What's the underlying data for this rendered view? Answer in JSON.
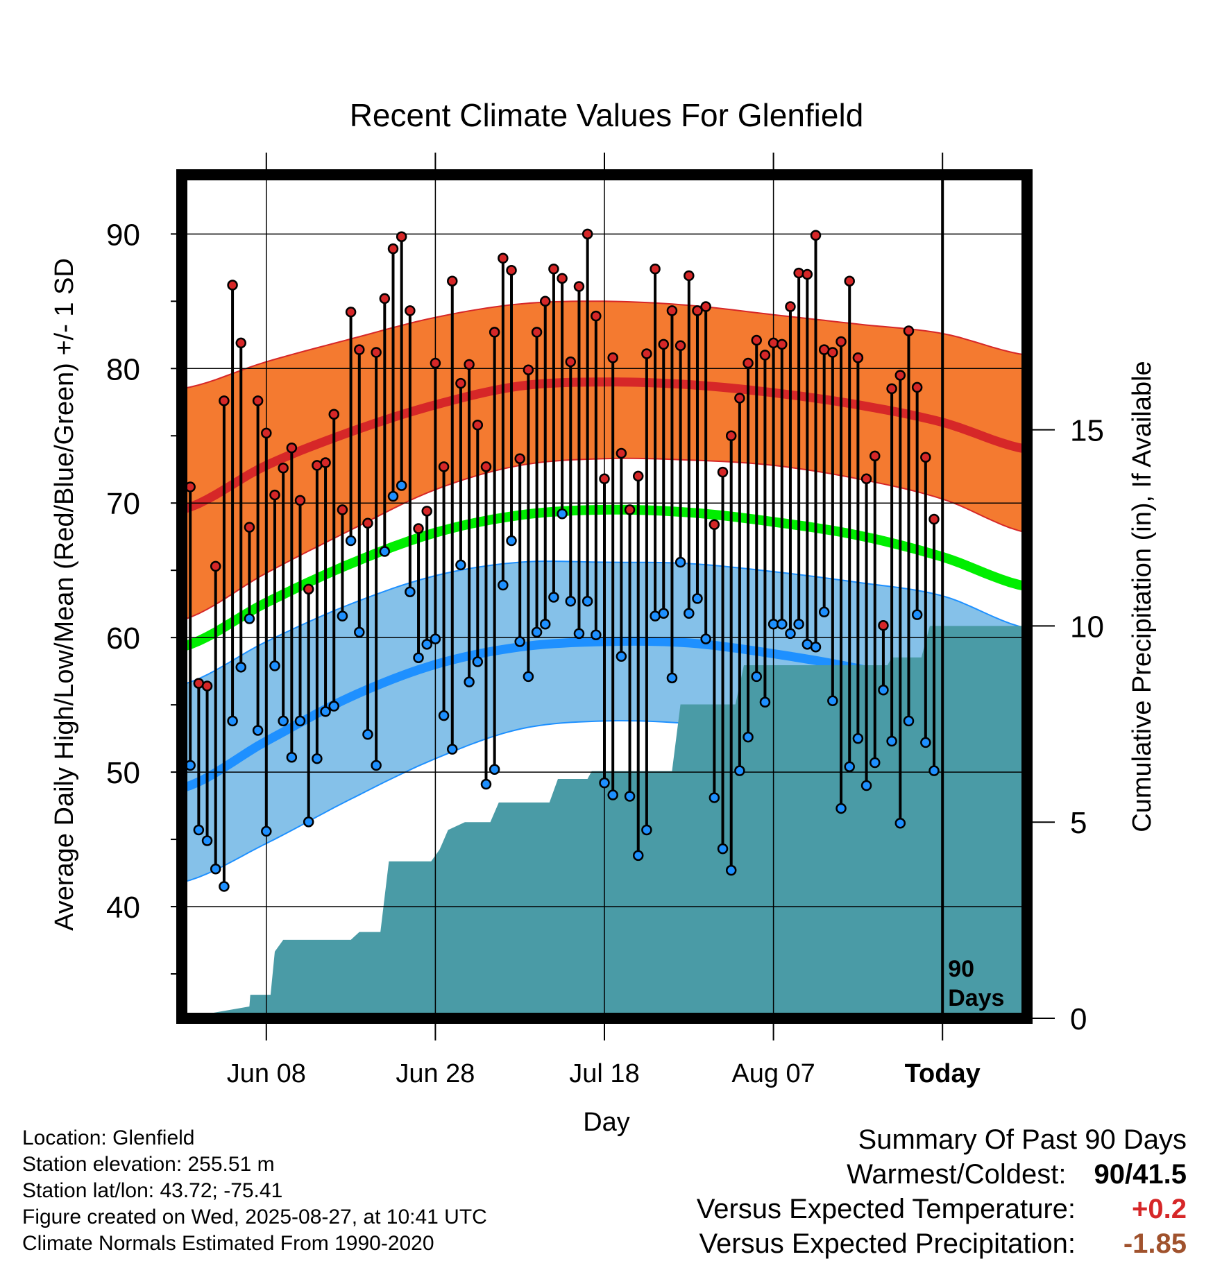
{
  "chart_data": {
    "type": "line",
    "title": "Recent Climate Values For Glenfield",
    "ylabel": "Average Daily High/Low/Mean (Red/Blue/Green) +/- 1 SD",
    "y2label": "Cumulative Precipitation (in), If Available",
    "xlabel": "Day",
    "ylim": [
      31.7,
      94.4
    ],
    "y2lim": [
      0,
      21.5
    ],
    "yticks": [
      "90",
      "80",
      "70",
      "60",
      "50",
      "40"
    ],
    "y2ticks": [
      "15",
      "10",
      "5",
      "0"
    ],
    "xticks": [
      "Jun 08",
      "Jun 28",
      "Jul 18",
      "Aug 07",
      "Today"
    ],
    "today_label": "90 Days",
    "day_range": [
      0,
      100
    ],
    "today_day": 90,
    "normals": {
      "days": [
        0,
        10,
        20,
        30,
        40,
        50,
        60,
        70,
        80,
        90,
        100
      ],
      "high_mean": [
        69.5,
        72.8,
        75.3,
        77.3,
        78.7,
        79.0,
        78.8,
        78.2,
        77.3,
        76.0,
        74.0
      ],
      "high_sd_upper": [
        78.5,
        80.5,
        82.2,
        83.8,
        84.8,
        85.0,
        84.7,
        84.0,
        83.3,
        82.6,
        81.0
      ],
      "high_sd_lower": [
        61.3,
        64.8,
        68.0,
        71.0,
        72.8,
        73.3,
        73.2,
        72.8,
        71.8,
        70.3,
        67.8
      ],
      "low_mean": [
        48.8,
        52.3,
        55.6,
        58.0,
        59.3,
        59.7,
        59.6,
        58.8,
        57.7,
        56.2,
        53.5
      ],
      "low_sd_upper": [
        56.5,
        59.7,
        62.5,
        64.6,
        65.6,
        65.6,
        65.5,
        64.9,
        64.1,
        63.1,
        60.7
      ],
      "low_sd_lower": [
        41.8,
        44.7,
        48.0,
        51.0,
        53.2,
        53.8,
        53.6,
        52.8,
        50.9,
        50.0,
        46.7
      ],
      "mean": [
        59.3,
        62.6,
        65.5,
        67.8,
        69.1,
        69.5,
        69.3,
        68.6,
        67.6,
        66.0,
        63.8
      ]
    },
    "series": [
      {
        "name": "High",
        "color": "#d62728",
        "values": [
          66,
          71.2,
          56.6,
          56.4,
          65.3,
          77.6,
          86.2,
          81.9,
          68.2,
          77.6,
          75.2,
          70.6,
          72.6,
          74.1,
          70.2,
          63.6,
          72.8,
          73,
          76.6,
          69.5,
          84.2,
          81.4,
          68.5,
          81.2,
          85.2,
          88.9,
          89.8,
          84.3,
          68.1,
          69.4,
          80.4,
          72.7,
          86.5,
          78.9,
          80.3,
          75.8,
          72.7,
          82.7,
          88.2,
          87.3,
          73.3,
          79.9,
          82.7,
          85,
          87.4,
          86.7,
          80.5,
          86.1,
          90,
          83.9,
          71.8,
          80.8,
          73.7,
          69.5,
          72,
          81.1,
          87.4,
          81.8,
          84.3,
          81.7,
          86.9,
          84.3,
          84.6,
          68.4,
          72.3,
          75,
          77.8,
          80.4,
          82.1,
          81,
          81.9,
          81.8,
          84.6,
          87.1,
          87,
          89.9,
          81.4,
          81.2,
          82,
          86.5,
          80.8,
          71.8,
          73.5,
          60.9,
          78.5,
          79.5,
          82.8,
          78.6,
          73.4,
          68.8
        ]
      },
      {
        "name": "Low",
        "color": "#1e90ff",
        "values": [
          50.6,
          50.5,
          45.7,
          44.9,
          42.8,
          41.5,
          53.8,
          57.8,
          61.4,
          53.1,
          45.6,
          57.9,
          53.8,
          51.1,
          53.8,
          46.3,
          51,
          54.5,
          54.9,
          61.6,
          67.2,
          60.4,
          52.8,
          50.5,
          66.4,
          70.5,
          71.3,
          63.4,
          58.5,
          59.5,
          59.9,
          54.2,
          51.7,
          65.4,
          56.7,
          58.2,
          49.1,
          50.2,
          63.9,
          67.2,
          59.7,
          57.1,
          60.4,
          61,
          63,
          69.2,
          62.7,
          60.3,
          62.7,
          60.2,
          49.2,
          48.3,
          58.6,
          48.2,
          43.8,
          45.7,
          61.6,
          61.8,
          57,
          65.6,
          61.8,
          62.9,
          59.9,
          48.1,
          44.3,
          42.7,
          50.1,
          52.6,
          57.1,
          55.2,
          61,
          61,
          60.3,
          61,
          59.5,
          59.3,
          61.9,
          55.3,
          47.3,
          50.4,
          52.5,
          49,
          50.7,
          56.1,
          52.3,
          46.2,
          53.8,
          61.7,
          52.2,
          50.1
        ]
      }
    ],
    "precip": {
      "steps": [
        [
          0,
          0
        ],
        [
          8,
          0.3
        ],
        [
          8.1,
          0.6
        ],
        [
          10.5,
          0.6
        ],
        [
          11,
          1.7
        ],
        [
          12,
          2
        ],
        [
          20,
          2
        ],
        [
          21,
          2.2
        ],
        [
          23.5,
          2.2
        ],
        [
          24.5,
          4
        ],
        [
          29.5,
          4
        ],
        [
          30.5,
          4.3
        ],
        [
          31.5,
          4.8
        ],
        [
          33.5,
          5
        ],
        [
          36.5,
          5
        ],
        [
          37.5,
          5.5
        ],
        [
          43.5,
          5.5
        ],
        [
          44.5,
          6.1
        ],
        [
          48,
          6.1
        ],
        [
          48.5,
          6.3
        ],
        [
          58,
          6.3
        ],
        [
          59,
          8
        ],
        [
          65.5,
          8
        ],
        [
          66.5,
          9
        ],
        [
          83.5,
          9
        ],
        [
          84,
          9.2
        ],
        [
          87.5,
          9.2
        ],
        [
          88.5,
          10
        ],
        [
          100,
          10
        ]
      ],
      "color": "#4a9ba6"
    }
  },
  "info": {
    "location": "Location: Glenfield",
    "elevation": "Station elevation: 255.51 m",
    "latlon": "Station lat/lon: 43.72; -75.41",
    "created": "Figure created on Wed, 2025-08-27, at 10:41 UTC",
    "normals": "Climate Normals Estimated From 1990-2020"
  },
  "summary": {
    "title": "Summary Of Past 90 Days",
    "warmest_label": "Warmest/Coldest:",
    "warmest_value": "90/41.5",
    "temp_label": "Versus Expected Temperature:",
    "temp_value": "+0.2",
    "temp_color": "#d62728",
    "precip_label": "Versus Expected Precipitation:",
    "precip_value": "-1.85",
    "precip_color": "#a0522d"
  }
}
